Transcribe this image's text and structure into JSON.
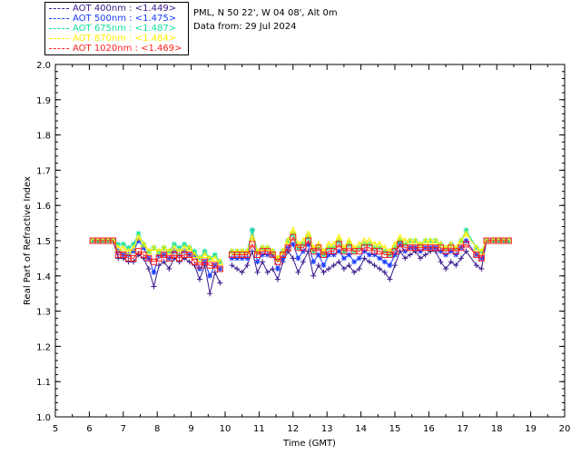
{
  "legend": {
    "entries": [
      {
        "label": "AOT  400nm : <1.449>",
        "color": "#3a1a8c"
      },
      {
        "label": "AOT  500nm : <1.475>",
        "color": "#1a3cff"
      },
      {
        "label": "AOT  675nm : <1.487>",
        "color": "#10e0a0"
      },
      {
        "label": "AOT  870nm : <1.484>",
        "color": "#ffee00"
      },
      {
        "label": "AOT 1020nm : <1.469>",
        "color": "#ff2020"
      }
    ]
  },
  "info": {
    "location": "PML, N 50 22', W 04 08', Alt 0m",
    "date": "Data from: 29 Jul 2024"
  },
  "chart_data": {
    "type": "line",
    "xlabel": "Time (GMT)",
    "ylabel": "Real Part of Refractive Index",
    "xlim": [
      5,
      20
    ],
    "ylim": [
      1.0,
      2.0
    ],
    "xticks": [
      "5",
      "6",
      "7",
      "8",
      "9",
      "10",
      "11",
      "12",
      "13",
      "14",
      "15",
      "16",
      "17",
      "18",
      "19",
      "20"
    ],
    "yticks": [
      "1.0",
      "1.1",
      "1.2",
      "1.3",
      "1.4",
      "1.5",
      "1.6",
      "1.7",
      "1.8",
      "1.9",
      "2.0"
    ],
    "x": [
      6.1,
      6.25,
      6.4,
      6.55,
      6.7,
      6.85,
      7.0,
      7.15,
      7.3,
      7.45,
      7.6,
      7.75,
      7.9,
      8.05,
      8.2,
      8.35,
      8.5,
      8.65,
      8.8,
      8.95,
      9.1,
      9.25,
      9.4,
      9.55,
      9.7,
      9.85,
      10.2,
      10.35,
      10.5,
      10.65,
      10.8,
      10.95,
      11.1,
      11.25,
      11.4,
      11.55,
      11.7,
      11.85,
      12.0,
      12.15,
      12.3,
      12.45,
      12.6,
      12.75,
      12.9,
      13.05,
      13.2,
      13.35,
      13.5,
      13.65,
      13.8,
      13.95,
      14.1,
      14.25,
      14.4,
      14.55,
      14.7,
      14.85,
      15.0,
      15.15,
      15.3,
      15.45,
      15.6,
      15.75,
      15.9,
      16.05,
      16.2,
      16.35,
      16.5,
      16.65,
      16.8,
      16.95,
      17.1,
      17.4,
      17.55,
      17.7,
      17.9,
      18.05,
      18.2,
      18.35
    ],
    "series": [
      {
        "name": "AOT  400nm",
        "color": "#3a1a8c",
        "marker": "plus",
        "values": [
          1.5,
          1.5,
          1.5,
          1.5,
          1.5,
          1.45,
          1.45,
          1.44,
          1.44,
          1.46,
          1.45,
          1.42,
          1.37,
          1.43,
          1.44,
          1.42,
          1.45,
          1.44,
          1.45,
          1.44,
          1.43,
          1.39,
          1.43,
          1.35,
          1.41,
          1.38,
          1.43,
          1.42,
          1.41,
          1.43,
          1.47,
          1.41,
          1.44,
          1.41,
          1.42,
          1.39,
          1.44,
          1.47,
          1.45,
          1.41,
          1.44,
          1.47,
          1.4,
          1.43,
          1.41,
          1.42,
          1.43,
          1.44,
          1.42,
          1.43,
          1.41,
          1.42,
          1.45,
          1.44,
          1.43,
          1.42,
          1.41,
          1.39,
          1.43,
          1.47,
          1.45,
          1.46,
          1.47,
          1.45,
          1.46,
          1.47,
          1.47,
          1.44,
          1.42,
          1.44,
          1.43,
          1.45,
          1.47,
          1.43,
          1.42,
          1.5,
          1.5,
          1.5,
          1.5,
          1.5
        ]
      },
      {
        "name": "AOT  500nm",
        "color": "#1a3cff",
        "marker": "star",
        "values": [
          1.5,
          1.5,
          1.5,
          1.5,
          1.5,
          1.47,
          1.46,
          1.46,
          1.47,
          1.5,
          1.48,
          1.45,
          1.41,
          1.46,
          1.46,
          1.45,
          1.47,
          1.46,
          1.47,
          1.46,
          1.46,
          1.42,
          1.44,
          1.4,
          1.43,
          1.42,
          1.45,
          1.45,
          1.45,
          1.45,
          1.53,
          1.44,
          1.46,
          1.46,
          1.46,
          1.42,
          1.45,
          1.48,
          1.49,
          1.45,
          1.47,
          1.49,
          1.44,
          1.46,
          1.43,
          1.46,
          1.46,
          1.47,
          1.45,
          1.46,
          1.44,
          1.45,
          1.47,
          1.46,
          1.46,
          1.45,
          1.44,
          1.43,
          1.46,
          1.49,
          1.47,
          1.48,
          1.48,
          1.47,
          1.48,
          1.48,
          1.48,
          1.47,
          1.46,
          1.47,
          1.46,
          1.48,
          1.5,
          1.46,
          1.45,
          1.5,
          1.5,
          1.5,
          1.5,
          1.5
        ]
      },
      {
        "name": "AOT  675nm",
        "color": "#10e0a0",
        "marker": "star",
        "values": [
          1.5,
          1.5,
          1.5,
          1.5,
          1.5,
          1.49,
          1.49,
          1.48,
          1.49,
          1.52,
          1.49,
          1.47,
          1.48,
          1.47,
          1.48,
          1.47,
          1.49,
          1.48,
          1.49,
          1.48,
          1.47,
          1.45,
          1.47,
          1.45,
          1.46,
          1.44,
          1.47,
          1.47,
          1.47,
          1.47,
          1.53,
          1.47,
          1.48,
          1.48,
          1.47,
          1.45,
          1.47,
          1.5,
          1.52,
          1.48,
          1.49,
          1.51,
          1.47,
          1.48,
          1.46,
          1.48,
          1.48,
          1.5,
          1.47,
          1.49,
          1.47,
          1.48,
          1.49,
          1.49,
          1.48,
          1.48,
          1.47,
          1.46,
          1.48,
          1.5,
          1.49,
          1.5,
          1.5,
          1.49,
          1.5,
          1.5,
          1.5,
          1.49,
          1.48,
          1.49,
          1.48,
          1.5,
          1.53,
          1.48,
          1.47,
          1.5,
          1.5,
          1.5,
          1.5,
          1.5
        ]
      },
      {
        "name": "AOT  870nm",
        "color": "#ffee00",
        "marker": "triangle",
        "values": [
          1.5,
          1.5,
          1.5,
          1.5,
          1.5,
          1.48,
          1.48,
          1.47,
          1.48,
          1.51,
          1.49,
          1.47,
          1.48,
          1.47,
          1.48,
          1.47,
          1.48,
          1.47,
          1.48,
          1.48,
          1.46,
          1.45,
          1.46,
          1.45,
          1.45,
          1.44,
          1.47,
          1.47,
          1.47,
          1.47,
          1.51,
          1.47,
          1.48,
          1.48,
          1.47,
          1.45,
          1.47,
          1.5,
          1.53,
          1.49,
          1.5,
          1.52,
          1.48,
          1.49,
          1.47,
          1.49,
          1.49,
          1.51,
          1.48,
          1.5,
          1.48,
          1.49,
          1.5,
          1.5,
          1.49,
          1.49,
          1.48,
          1.47,
          1.49,
          1.51,
          1.5,
          1.5,
          1.5,
          1.49,
          1.5,
          1.5,
          1.5,
          1.49,
          1.48,
          1.49,
          1.48,
          1.5,
          1.52,
          1.48,
          1.47,
          1.5,
          1.5,
          1.5,
          1.5,
          1.5
        ]
      },
      {
        "name": "AOT 1020nm",
        "color": "#ff2020",
        "marker": "square",
        "values": [
          1.5,
          1.5,
          1.5,
          1.5,
          1.5,
          1.46,
          1.46,
          1.45,
          1.45,
          1.47,
          1.46,
          1.45,
          1.44,
          1.45,
          1.46,
          1.45,
          1.46,
          1.45,
          1.46,
          1.46,
          1.44,
          1.43,
          1.44,
          1.43,
          1.43,
          1.42,
          1.46,
          1.46,
          1.46,
          1.46,
          1.49,
          1.46,
          1.47,
          1.47,
          1.46,
          1.44,
          1.46,
          1.48,
          1.51,
          1.48,
          1.48,
          1.5,
          1.47,
          1.48,
          1.46,
          1.47,
          1.47,
          1.49,
          1.47,
          1.48,
          1.47,
          1.47,
          1.48,
          1.48,
          1.47,
          1.47,
          1.46,
          1.46,
          1.47,
          1.49,
          1.48,
          1.48,
          1.48,
          1.48,
          1.48,
          1.48,
          1.48,
          1.48,
          1.47,
          1.48,
          1.47,
          1.48,
          1.49,
          1.46,
          1.45,
          1.5,
          1.5,
          1.5,
          1.5,
          1.5
        ]
      }
    ]
  }
}
